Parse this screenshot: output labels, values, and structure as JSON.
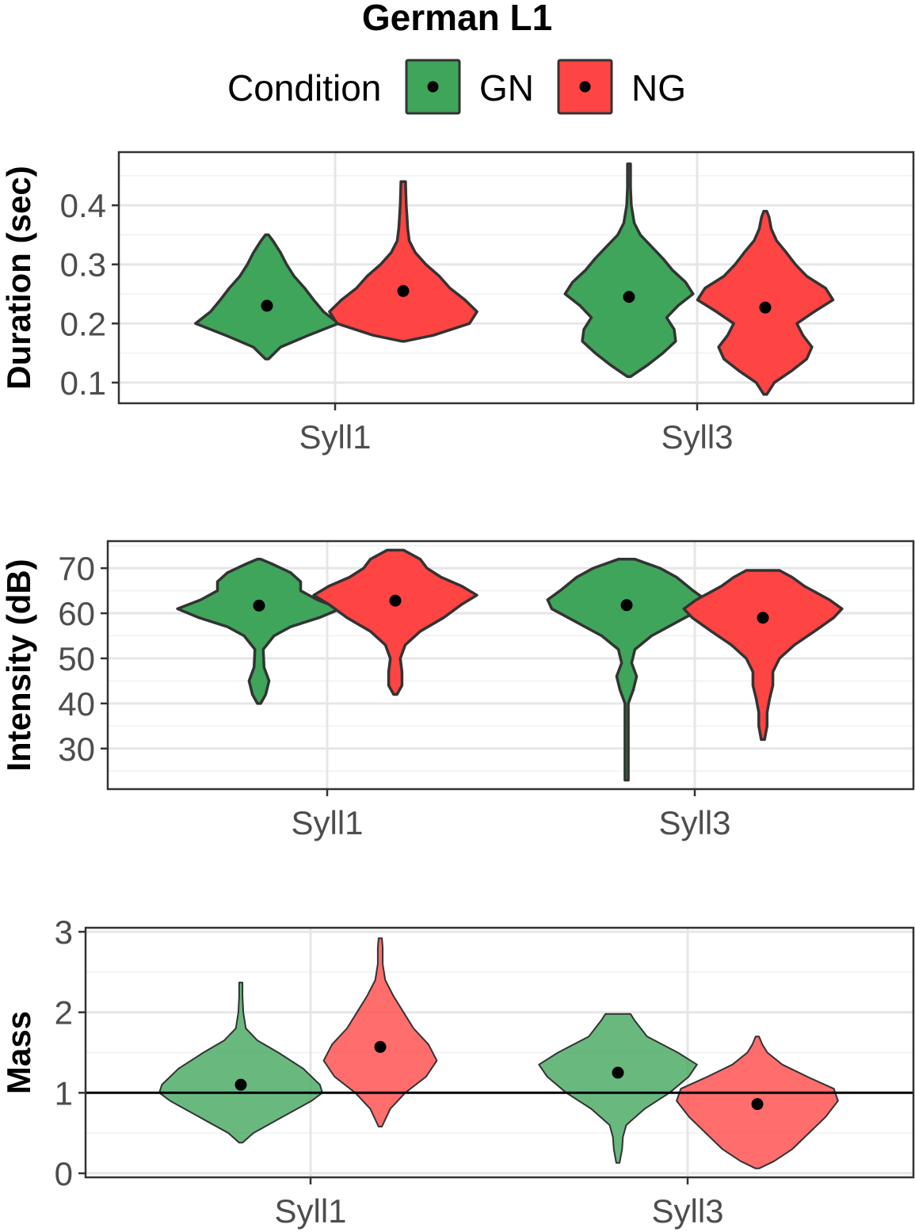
{
  "figure": {
    "title": "German L1",
    "legend": {
      "title": "Condition",
      "placement": "top",
      "entries": [
        {
          "label": "GN",
          "color": "#3fa55a"
        },
        {
          "label": "NG",
          "color": "#ff4444"
        }
      ]
    }
  },
  "chart_data": [
    {
      "type": "violin",
      "ylabel": "Duration (sec)",
      "categories": [
        "Syll1",
        "Syll3"
      ],
      "ylim": [
        0.065,
        0.49
      ],
      "yticks": [
        0.1,
        0.2,
        0.3,
        0.4
      ],
      "ytick_labels": [
        "0.1",
        "0.2",
        "0.3",
        "0.4"
      ],
      "grid": true,
      "series": [
        {
          "name": "GN",
          "color": "#3fa55a",
          "fill_opacity": 1,
          "groups": [
            {
              "category": "Syll1",
              "mean": 0.23,
              "profile": [
                [
                  0.14,
                  0.02
                ],
                [
                  0.16,
                  0.18
                ],
                [
                  0.18,
                  0.55
                ],
                [
                  0.2,
                  0.95
                ],
                [
                  0.22,
                  0.75
                ],
                [
                  0.24,
                  0.62
                ],
                [
                  0.26,
                  0.5
                ],
                [
                  0.28,
                  0.36
                ],
                [
                  0.3,
                  0.26
                ],
                [
                  0.32,
                  0.18
                ],
                [
                  0.34,
                  0.08
                ],
                [
                  0.35,
                  0.02
                ]
              ]
            },
            {
              "category": "Syll3",
              "mean": 0.245,
              "profile": [
                [
                  0.11,
                  0.02
                ],
                [
                  0.13,
                  0.25
                ],
                [
                  0.15,
                  0.45
                ],
                [
                  0.17,
                  0.62
                ],
                [
                  0.19,
                  0.6
                ],
                [
                  0.21,
                  0.5
                ],
                [
                  0.23,
                  0.65
                ],
                [
                  0.25,
                  0.85
                ],
                [
                  0.27,
                  0.75
                ],
                [
                  0.29,
                  0.58
                ],
                [
                  0.31,
                  0.45
                ],
                [
                  0.33,
                  0.3
                ],
                [
                  0.35,
                  0.15
                ],
                [
                  0.37,
                  0.07
                ],
                [
                  0.4,
                  0.03
                ],
                [
                  0.43,
                  0.02
                ],
                [
                  0.47,
                  0.02
                ]
              ]
            }
          ]
        },
        {
          "name": "NG",
          "color": "#ff4444",
          "fill_opacity": 1,
          "groups": [
            {
              "category": "Syll1",
              "mean": 0.255,
              "profile": [
                [
                  0.17,
                  0.02
                ],
                [
                  0.18,
                  0.4
                ],
                [
                  0.2,
                  0.88
                ],
                [
                  0.22,
                  0.98
                ],
                [
                  0.24,
                  0.82
                ],
                [
                  0.26,
                  0.62
                ],
                [
                  0.28,
                  0.48
                ],
                [
                  0.3,
                  0.3
                ],
                [
                  0.32,
                  0.16
                ],
                [
                  0.34,
                  0.08
                ],
                [
                  0.36,
                  0.06
                ],
                [
                  0.38,
                  0.05
                ],
                [
                  0.4,
                  0.04
                ],
                [
                  0.42,
                  0.035
                ],
                [
                  0.44,
                  0.03
                ]
              ]
            },
            {
              "category": "Syll3",
              "mean": 0.227,
              "profile": [
                [
                  0.08,
                  0.02
                ],
                [
                  0.1,
                  0.12
                ],
                [
                  0.12,
                  0.35
                ],
                [
                  0.14,
                  0.55
                ],
                [
                  0.16,
                  0.62
                ],
                [
                  0.18,
                  0.5
                ],
                [
                  0.2,
                  0.42
                ],
                [
                  0.22,
                  0.65
                ],
                [
                  0.24,
                  0.9
                ],
                [
                  0.26,
                  0.8
                ],
                [
                  0.28,
                  0.55
                ],
                [
                  0.3,
                  0.4
                ],
                [
                  0.32,
                  0.28
                ],
                [
                  0.34,
                  0.15
                ],
                [
                  0.36,
                  0.08
                ],
                [
                  0.38,
                  0.05
                ],
                [
                  0.39,
                  0.02
                ]
              ]
            }
          ]
        }
      ]
    },
    {
      "type": "violin",
      "ylabel": "Intensity (dB)",
      "categories": [
        "Syll1",
        "Syll3"
      ],
      "ylim": [
        21,
        76
      ],
      "yticks": [
        30,
        40,
        50,
        60,
        70
      ],
      "ytick_labels": [
        "30",
        "40",
        "50",
        "60",
        "70"
      ],
      "grid": true,
      "series": [
        {
          "name": "GN",
          "color": "#3fa55a",
          "fill_opacity": 1,
          "groups": [
            {
              "category": "Syll1",
              "mean": 61.7,
              "profile": [
                [
                  40,
                  0.02
                ],
                [
                  42,
                  0.08
                ],
                [
                  45,
                  0.12
                ],
                [
                  48,
                  0.06
                ],
                [
                  52,
                  0.05
                ],
                [
                  55,
                  0.18
                ],
                [
                  57,
                  0.38
                ],
                [
                  59,
                  0.72
                ],
                [
                  61,
                  0.98
                ],
                [
                  63,
                  0.7
                ],
                [
                  65,
                  0.5
                ],
                [
                  67,
                  0.5
                ],
                [
                  69,
                  0.38
                ],
                [
                  71,
                  0.15
                ],
                [
                  72,
                  0.02
                ]
              ]
            },
            {
              "category": "Syll3",
              "mean": 61.8,
              "profile": [
                [
                  23,
                  0.02
                ],
                [
                  26,
                  0.02
                ],
                [
                  30,
                  0.02
                ],
                [
                  35,
                  0.02
                ],
                [
                  40,
                  0.02
                ],
                [
                  43,
                  0.08
                ],
                [
                  46,
                  0.12
                ],
                [
                  49,
                  0.06
                ],
                [
                  52,
                  0.1
                ],
                [
                  55,
                  0.3
                ],
                [
                  58,
                  0.6
                ],
                [
                  61,
                  0.9
                ],
                [
                  63,
                  0.95
                ],
                [
                  65,
                  0.8
                ],
                [
                  68,
                  0.6
                ],
                [
                  70,
                  0.4
                ],
                [
                  72,
                  0.1
                ]
              ]
            }
          ]
        },
        {
          "name": "NG",
          "color": "#ff4444",
          "fill_opacity": 1,
          "groups": [
            {
              "category": "Syll1",
              "mean": 62.8,
              "profile": [
                [
                  42,
                  0.02
                ],
                [
                  44,
                  0.08
                ],
                [
                  47,
                  0.08
                ],
                [
                  50,
                  0.06
                ],
                [
                  53,
                  0.12
                ],
                [
                  56,
                  0.3
                ],
                [
                  59,
                  0.58
                ],
                [
                  62,
                  0.8
                ],
                [
                  64,
                  0.98
                ],
                [
                  66,
                  0.8
                ],
                [
                  68,
                  0.55
                ],
                [
                  70,
                  0.38
                ],
                [
                  72,
                  0.3
                ],
                [
                  74,
                  0.1
                ]
              ]
            },
            {
              "category": "Syll3",
              "mean": 59.0,
              "profile": [
                [
                  32,
                  0.02
                ],
                [
                  35,
                  0.05
                ],
                [
                  38,
                  0.05
                ],
                [
                  41,
                  0.08
                ],
                [
                  44,
                  0.12
                ],
                [
                  47,
                  0.12
                ],
                [
                  50,
                  0.2
                ],
                [
                  53,
                  0.38
                ],
                [
                  56,
                  0.62
                ],
                [
                  59,
                  0.85
                ],
                [
                  61,
                  0.95
                ],
                [
                  63,
                  0.8
                ],
                [
                  66,
                  0.5
                ],
                [
                  68,
                  0.35
                ],
                [
                  69.5,
                  0.2
                ]
              ]
            }
          ]
        }
      ]
    },
    {
      "type": "violin",
      "ylabel": "Mass",
      "categories": [
        "Syll1",
        "Syll3"
      ],
      "ylim": [
        -0.05,
        3.05
      ],
      "yticks": [
        0,
        1,
        2,
        3
      ],
      "ytick_labels": [
        "0",
        "1",
        "2",
        "3"
      ],
      "grid": true,
      "hline": 1,
      "series": [
        {
          "name": "GN",
          "color": "#3fa55a",
          "fill_opacity": 0.78,
          "groups": [
            {
              "category": "Syll1",
              "mean": 1.1,
              "profile": [
                [
                  0.38,
                  0.02
                ],
                [
                  0.5,
                  0.15
                ],
                [
                  0.7,
                  0.5
                ],
                [
                  0.9,
                  0.85
                ],
                [
                  1.0,
                  0.98
                ],
                [
                  1.1,
                  0.95
                ],
                [
                  1.3,
                  0.75
                ],
                [
                  1.5,
                  0.45
                ],
                [
                  1.65,
                  0.2
                ],
                [
                  1.8,
                  0.06
                ],
                [
                  2.0,
                  0.03
                ],
                [
                  2.2,
                  0.02
                ],
                [
                  2.37,
                  0.02
                ]
              ]
            },
            {
              "category": "Syll3",
              "mean": 1.25,
              "profile": [
                [
                  0.13,
                  0.02
                ],
                [
                  0.3,
                  0.05
                ],
                [
                  0.45,
                  0.06
                ],
                [
                  0.6,
                  0.1
                ],
                [
                  0.8,
                  0.32
                ],
                [
                  1.0,
                  0.62
                ],
                [
                  1.2,
                  0.85
                ],
                [
                  1.35,
                  0.95
                ],
                [
                  1.5,
                  0.72
                ],
                [
                  1.7,
                  0.35
                ],
                [
                  1.9,
                  0.2
                ],
                [
                  1.98,
                  0.15
                ]
              ]
            }
          ]
        },
        {
          "name": "NG",
          "color": "#ff4444",
          "fill_opacity": 0.78,
          "groups": [
            {
              "category": "Syll1",
              "mean": 1.57,
              "profile": [
                [
                  0.58,
                  0.02
                ],
                [
                  0.8,
                  0.12
                ],
                [
                  1.0,
                  0.3
                ],
                [
                  1.2,
                  0.55
                ],
                [
                  1.4,
                  0.68
                ],
                [
                  1.6,
                  0.58
                ],
                [
                  1.8,
                  0.4
                ],
                [
                  2.0,
                  0.28
                ],
                [
                  2.2,
                  0.16
                ],
                [
                  2.4,
                  0.06
                ],
                [
                  2.6,
                  0.03
                ],
                [
                  2.8,
                  0.03
                ],
                [
                  2.92,
                  0.02
                ]
              ]
            },
            {
              "category": "Syll3",
              "mean": 0.86,
              "profile": [
                [
                  0.06,
                  0.02
                ],
                [
                  0.15,
                  0.2
                ],
                [
                  0.3,
                  0.42
                ],
                [
                  0.5,
                  0.62
                ],
                [
                  0.7,
                  0.82
                ],
                [
                  0.9,
                  0.97
                ],
                [
                  1.05,
                  0.92
                ],
                [
                  1.2,
                  0.6
                ],
                [
                  1.35,
                  0.3
                ],
                [
                  1.5,
                  0.12
                ],
                [
                  1.6,
                  0.06
                ],
                [
                  1.7,
                  0.02
                ]
              ]
            }
          ]
        }
      ]
    }
  ]
}
